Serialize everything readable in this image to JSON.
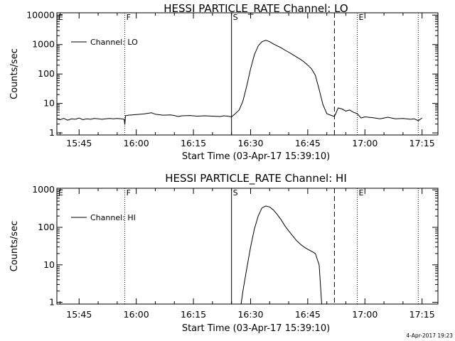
{
  "chart_data": [
    {
      "type": "line",
      "title": "HESSI PARTICLE_RATE Channel: LO",
      "xlabel": "Start Time (03-Apr-17 15:39:10)",
      "ylabel": "Counts/sec",
      "yscale": "log",
      "ylim": [
        0.85,
        12000
      ],
      "xlim": [
        "15:39:10",
        "17:19:10"
      ],
      "x_ticks": [
        "15:45",
        "16:00",
        "16:15",
        "16:30",
        "16:45",
        "17:00",
        "17:15"
      ],
      "y_ticks": [
        "1",
        "10",
        "100",
        "1000",
        "10000"
      ],
      "legend": {
        "label": "Channel: LO",
        "position": "top-left"
      },
      "markers": [
        {
          "label": "E",
          "time": "15:39:10",
          "style": "none"
        },
        {
          "label": "F",
          "time": "15:57:00",
          "style": "dotted"
        },
        {
          "label": "S",
          "time": "16:25:00",
          "style": "solid"
        },
        {
          "label": "",
          "time": "16:52:00",
          "style": "dashed"
        },
        {
          "label": "E",
          "time": "16:58:00",
          "style": "dotted"
        },
        {
          "label": "",
          "time": "17:14:00",
          "style": "dotted"
        }
      ],
      "series": [
        {
          "name": "Channel: LO",
          "points": [
            [
              "15:39:10",
              3.0
            ],
            [
              "15:40",
              2.8
            ],
            [
              "15:41",
              3.1
            ],
            [
              "15:42",
              2.7
            ],
            [
              "15:43",
              3.0
            ],
            [
              "15:44",
              2.9
            ],
            [
              "15:45",
              3.2
            ],
            [
              "15:46",
              2.8
            ],
            [
              "15:47",
              3.0
            ],
            [
              "15:48",
              2.9
            ],
            [
              "15:49",
              3.1
            ],
            [
              "15:50",
              3.0
            ],
            [
              "15:51",
              2.9
            ],
            [
              "15:52",
              3.0
            ],
            [
              "15:53",
              3.1
            ],
            [
              "15:54",
              3.0
            ],
            [
              "15:55",
              3.1
            ],
            [
              "15:56",
              3.0
            ],
            [
              "15:56:50",
              2.9
            ],
            [
              "15:57:00",
              1.9
            ],
            [
              "15:57:10",
              3.8
            ],
            [
              "15:58",
              4.0
            ],
            [
              "16:00",
              4.2
            ],
            [
              "16:02",
              4.4
            ],
            [
              "16:04",
              4.8
            ],
            [
              "16:05",
              4.3
            ],
            [
              "16:07",
              4.0
            ],
            [
              "16:09",
              4.1
            ],
            [
              "16:10",
              3.9
            ],
            [
              "16:11",
              3.6
            ],
            [
              "16:12",
              3.8
            ],
            [
              "16:14",
              3.9
            ],
            [
              "16:16",
              3.7
            ],
            [
              "16:18",
              3.8
            ],
            [
              "16:20",
              3.7
            ],
            [
              "16:22",
              3.6
            ],
            [
              "16:23",
              3.8
            ],
            [
              "16:24",
              3.7
            ],
            [
              "16:25",
              3.5
            ],
            [
              "16:26",
              4.5
            ],
            [
              "16:27",
              6
            ],
            [
              "16:28",
              12
            ],
            [
              "16:29",
              40
            ],
            [
              "16:30",
              150
            ],
            [
              "16:31",
              450
            ],
            [
              "16:32",
              900
            ],
            [
              "16:33",
              1250
            ],
            [
              "16:34",
              1400
            ],
            [
              "16:35",
              1250
            ],
            [
              "16:36",
              1050
            ],
            [
              "16:37",
              900
            ],
            [
              "16:38",
              780
            ],
            [
              "16:39",
              650
            ],
            [
              "16:40",
              550
            ],
            [
              "16:41",
              460
            ],
            [
              "16:42",
              380
            ],
            [
              "16:43",
              320
            ],
            [
              "16:44",
              260
            ],
            [
              "16:45",
              200
            ],
            [
              "16:46",
              150
            ],
            [
              "16:47",
              90
            ],
            [
              "16:48",
              30
            ],
            [
              "16:49",
              9
            ],
            [
              "16:50",
              4.5
            ],
            [
              "16:51",
              4
            ],
            [
              "16:52",
              3.6
            ],
            [
              "16:53",
              7
            ],
            [
              "16:54",
              6.5
            ],
            [
              "16:55",
              5.5
            ],
            [
              "16:56",
              6
            ],
            [
              "16:57",
              5
            ],
            [
              "16:58",
              4.5
            ],
            [
              "16:59",
              3.2
            ],
            [
              "17:00",
              3.5
            ],
            [
              "17:02",
              3.3
            ],
            [
              "17:04",
              3.0
            ],
            [
              "17:06",
              3.4
            ],
            [
              "17:08",
              3.0
            ],
            [
              "17:10",
              3.1
            ],
            [
              "17:12",
              2.9
            ],
            [
              "17:13",
              3.0
            ],
            [
              "17:14",
              2.6
            ],
            [
              "17:15",
              3.2
            ]
          ]
        }
      ]
    },
    {
      "type": "line",
      "title": "HESSI PARTICLE_RATE Channel: HI",
      "xlabel": "Start Time (03-Apr-17 15:39:10)",
      "ylabel": "Counts/sec",
      "yscale": "log",
      "ylim": [
        0.9,
        1100
      ],
      "xlim": [
        "15:39:10",
        "17:19:10"
      ],
      "x_ticks": [
        "15:45",
        "16:00",
        "16:15",
        "16:30",
        "16:45",
        "17:00",
        "17:15"
      ],
      "y_ticks": [
        "1",
        "10",
        "100",
        "1000"
      ],
      "legend": {
        "label": "Channel: HI",
        "position": "top-left"
      },
      "markers": [
        {
          "label": "E",
          "time": "15:39:10",
          "style": "none"
        },
        {
          "label": "F",
          "time": "15:57:00",
          "style": "dotted"
        },
        {
          "label": "S",
          "time": "16:25:00",
          "style": "solid"
        },
        {
          "label": "",
          "time": "16:52:00",
          "style": "dashed"
        },
        {
          "label": "E",
          "time": "16:58:00",
          "style": "dotted"
        },
        {
          "label": "",
          "time": "17:14:00",
          "style": "dotted"
        }
      ],
      "series": [
        {
          "name": "Channel: HI",
          "points": [
            [
              "16:27:30",
              0.9
            ],
            [
              "16:28",
              2
            ],
            [
              "16:29",
              8
            ],
            [
              "16:30",
              30
            ],
            [
              "16:31",
              90
            ],
            [
              "16:32",
              200
            ],
            [
              "16:33",
              330
            ],
            [
              "16:34",
              370
            ],
            [
              "16:35",
              350
            ],
            [
              "16:36",
              290
            ],
            [
              "16:37",
              220
            ],
            [
              "16:38",
              160
            ],
            [
              "16:39",
              110
            ],
            [
              "16:40",
              80
            ],
            [
              "16:41",
              60
            ],
            [
              "16:42",
              45
            ],
            [
              "16:43",
              36
            ],
            [
              "16:44",
              30
            ],
            [
              "16:45",
              26
            ],
            [
              "16:46",
              23
            ],
            [
              "16:47",
              20
            ],
            [
              "16:48",
              10
            ],
            [
              "16:48:40",
              0.9
            ]
          ]
        }
      ]
    }
  ],
  "timestamp": "4-Apr-2017 19:23"
}
